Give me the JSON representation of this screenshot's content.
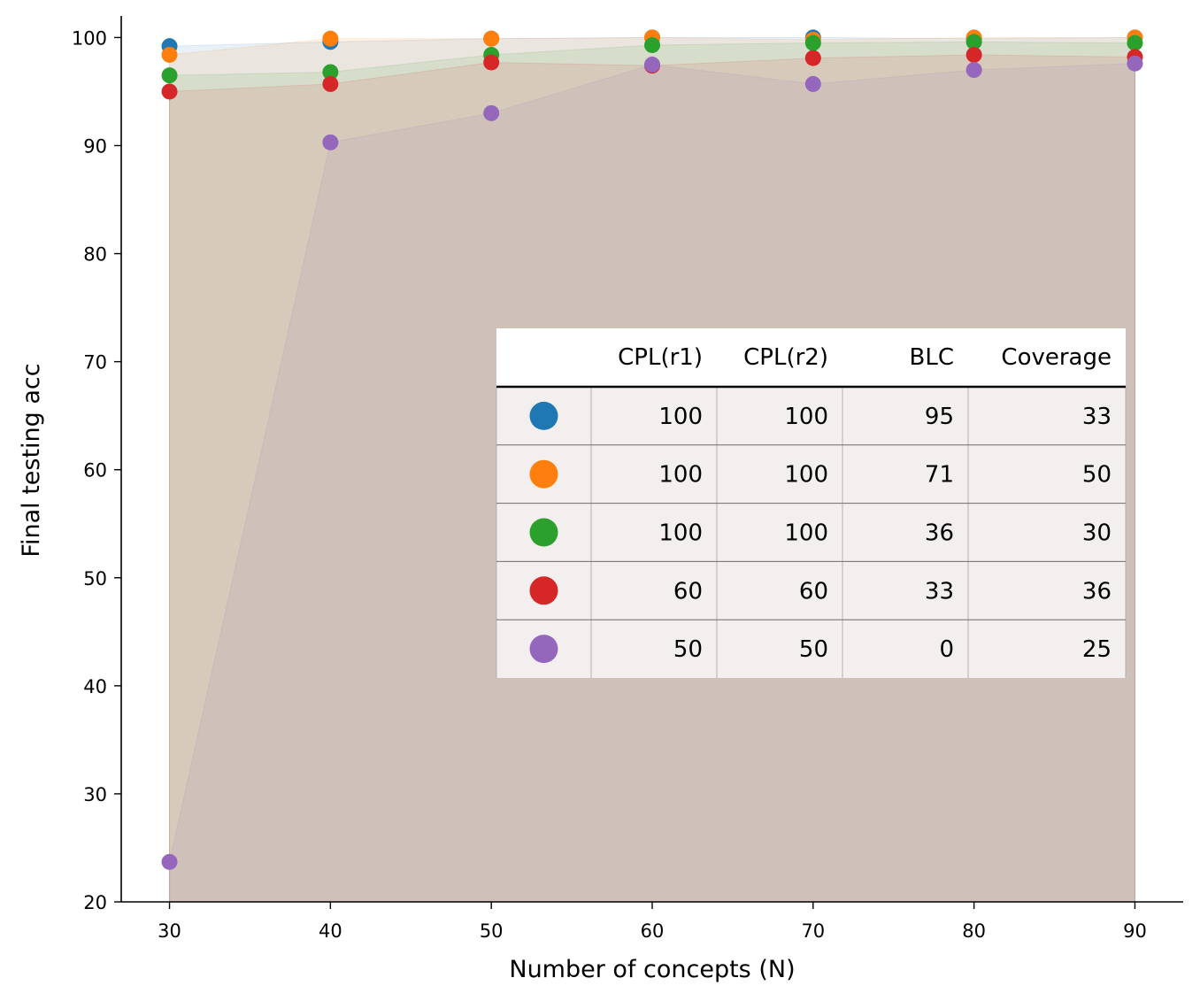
{
  "chart_data": {
    "type": "scatter",
    "title": "",
    "xlabel": "Number of concepts (N)",
    "ylabel": "Final testing acc",
    "xlim": [
      27,
      93
    ],
    "ylim": [
      20,
      102
    ],
    "xticks": [
      30,
      40,
      50,
      60,
      70,
      80,
      90
    ],
    "yticks": [
      20,
      30,
      40,
      50,
      60,
      70,
      80,
      90,
      100
    ],
    "grid": false,
    "x": [
      30,
      40,
      50,
      60,
      70,
      80,
      90
    ],
    "series": [
      {
        "color": "#1f77b4",
        "values": [
          99.2,
          99.6,
          99.9,
          100.0,
          100.0,
          99.9,
          100.0
        ]
      },
      {
        "color": "#ff7f0e",
        "values": [
          98.4,
          99.9,
          99.9,
          100.0,
          99.8,
          100.0,
          100.0
        ]
      },
      {
        "color": "#2ca02c",
        "values": [
          96.5,
          96.8,
          98.4,
          99.3,
          99.5,
          99.6,
          99.5
        ]
      },
      {
        "color": "#d62728",
        "values": [
          95.0,
          95.7,
          97.7,
          97.4,
          98.1,
          98.4,
          98.2
        ]
      },
      {
        "color": "#9467bd",
        "values": [
          23.7,
          90.3,
          93.0,
          97.5,
          95.7,
          97.0,
          97.6
        ]
      }
    ],
    "table": {
      "columns": [
        "CPL(r1)",
        "CPL(r2)",
        "BLC",
        "Coverage"
      ],
      "rows": [
        {
          "color": "#1f77b4",
          "cells": [
            "100",
            "100",
            "95",
            "33"
          ]
        },
        {
          "color": "#ff7f0e",
          "cells": [
            "100",
            "100",
            "71",
            "50"
          ]
        },
        {
          "color": "#2ca02c",
          "cells": [
            "100",
            "100",
            "36",
            "30"
          ]
        },
        {
          "color": "#d62728",
          "cells": [
            "60",
            "60",
            "33",
            "36"
          ]
        },
        {
          "color": "#9467bd",
          "cells": [
            "50",
            "50",
            "0",
            "25"
          ]
        }
      ]
    }
  }
}
